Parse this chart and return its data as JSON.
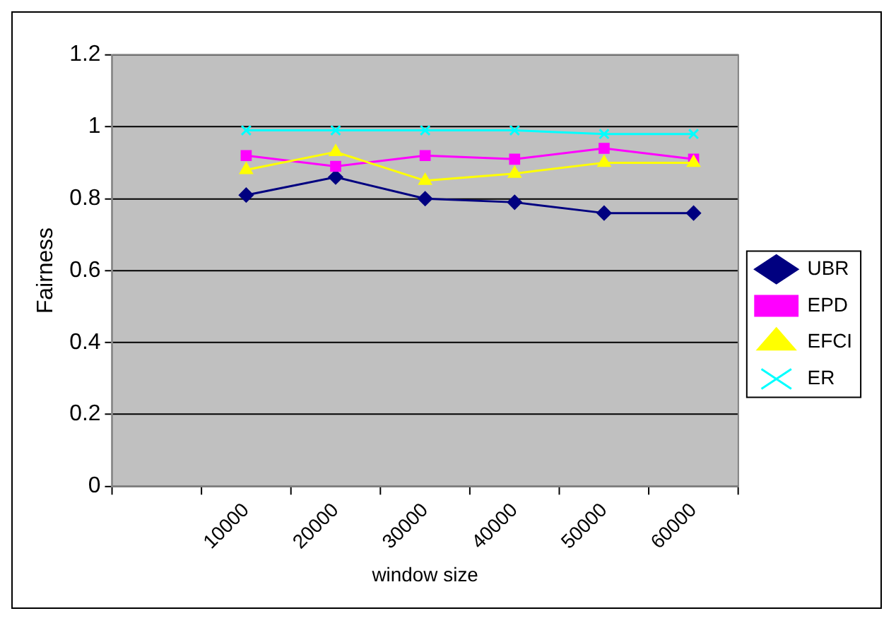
{
  "chart_data": {
    "type": "line",
    "xlabel": "window size",
    "ylabel": "Fairness",
    "categories": [
      null,
      "10000",
      "20000",
      "30000",
      "40000",
      "50000",
      "60000"
    ],
    "series": [
      {
        "name": "UBR",
        "color": "#000080",
        "marker": "diamond",
        "values": [
          null,
          0.81,
          0.86,
          0.8,
          0.79,
          0.76,
          0.76
        ]
      },
      {
        "name": "EPD",
        "color": "#ff00ff",
        "marker": "square",
        "values": [
          null,
          0.92,
          0.89,
          0.92,
          0.91,
          0.94,
          0.91
        ]
      },
      {
        "name": "EFCI",
        "color": "#ffff00",
        "marker": "triangle",
        "values": [
          null,
          0.88,
          0.93,
          0.85,
          0.87,
          0.9,
          0.9
        ]
      },
      {
        "name": "ER",
        "color": "#00ffff",
        "marker": "cross",
        "values": [
          null,
          0.99,
          0.99,
          0.99,
          0.99,
          0.98,
          0.98
        ]
      }
    ],
    "ylim": [
      0,
      1.2
    ],
    "yticks": [
      0,
      0.2,
      0.4,
      0.6,
      0.8,
      1,
      1.2
    ],
    "grid": "y",
    "legend": "right"
  }
}
